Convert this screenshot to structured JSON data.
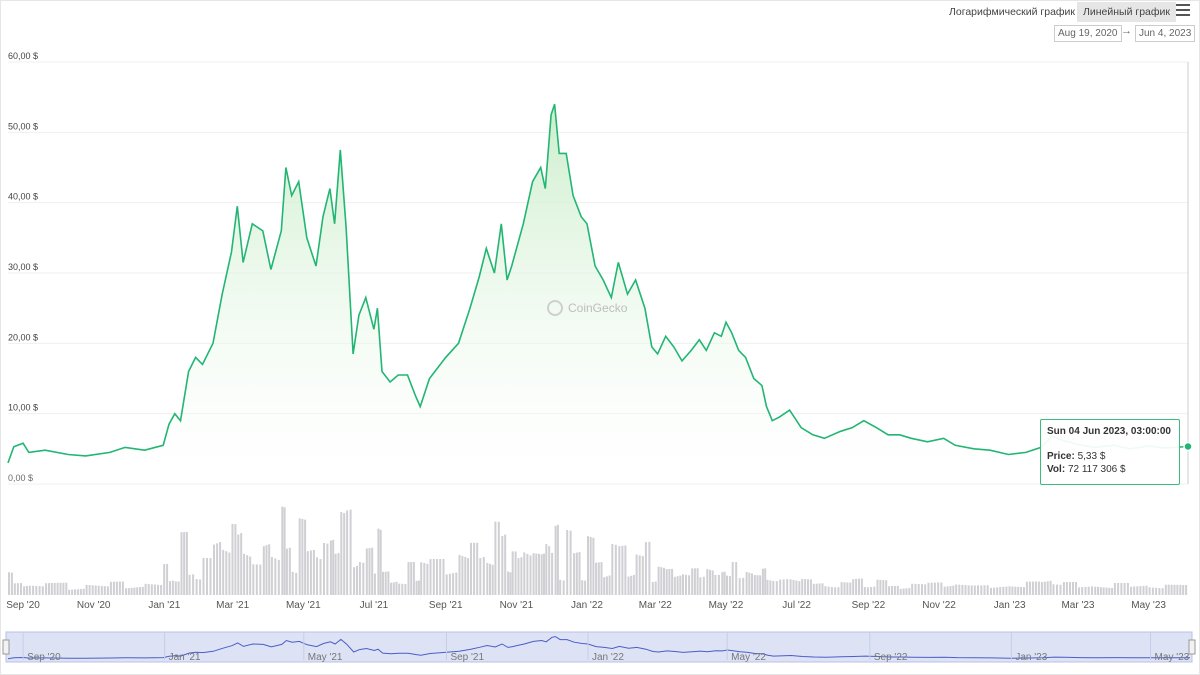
{
  "toolbar": {
    "log_label": "Логарифмический график",
    "linear_label": "Линейный график",
    "date_from": "Aug 19, 2020",
    "date_arrow": "→",
    "date_to": "Jun 4, 2023"
  },
  "tooltip": {
    "date": "Sun 04 Jun 2023, 03:00:00",
    "price_label": "Price:",
    "price_value": "5,33 $",
    "vol_label": "Vol:",
    "vol_value": "72 117 306 $"
  },
  "chart_data": {
    "type": "area",
    "watermark": "CoinGecko",
    "line_color": "#22b573",
    "fill_color": "#d9f2d9",
    "volume_color": "#cfcfd4",
    "navigator_line_color": "#4a5dc8",
    "navigator_fill_color": "#dde3f4",
    "grid": true,
    "y_ticks": [
      "0,00 $",
      "10,00 $",
      "20,00 $",
      "30,00 $",
      "40,00 $",
      "50,00 $",
      "60,00 $"
    ],
    "y_tick_values": [
      0,
      10,
      20,
      30,
      40,
      50,
      60
    ],
    "ylim": [
      0,
      60
    ],
    "x_ticks": [
      "Sep '20",
      "Nov '20",
      "Jan '21",
      "Mar '21",
      "May '21",
      "Jul '21",
      "Sep '21",
      "Nov '21",
      "Jan '22",
      "Mar '22",
      "May '22",
      "Jul '22",
      "Sep '22",
      "Nov '22",
      "Jan '23",
      "Mar '23",
      "May '23"
    ],
    "x_tick_dates": [
      "2020-09-01",
      "2020-11-01",
      "2021-01-01",
      "2021-03-01",
      "2021-05-01",
      "2021-07-01",
      "2021-09-01",
      "2021-11-01",
      "2022-01-01",
      "2022-03-01",
      "2022-05-01",
      "2022-07-01",
      "2022-09-01",
      "2022-11-01",
      "2023-01-01",
      "2023-03-01",
      "2023-05-01"
    ],
    "navigator_ticks": [
      "Sep '20",
      "Jan '21",
      "May '21",
      "Sep '21",
      "Jan '22",
      "May '22",
      "Sep '22",
      "Jan '23",
      "May '23"
    ],
    "navigator_tick_dates": [
      "2020-09-01",
      "2021-01-01",
      "2021-05-01",
      "2021-09-01",
      "2022-01-01",
      "2022-05-01",
      "2022-09-01",
      "2023-01-01",
      "2023-05-01"
    ],
    "x_range": [
      "2020-08-19",
      "2023-06-04"
    ],
    "series": [
      {
        "values": [
          [
            "2020-08-19",
            3.0
          ],
          [
            "2020-08-24",
            5.3
          ],
          [
            "2020-09-01",
            5.8
          ],
          [
            "2020-09-06",
            4.5
          ],
          [
            "2020-09-20",
            4.8
          ],
          [
            "2020-10-10",
            4.2
          ],
          [
            "2020-10-25",
            4.0
          ],
          [
            "2020-11-15",
            4.5
          ],
          [
            "2020-11-28",
            5.2
          ],
          [
            "2020-12-15",
            4.8
          ],
          [
            "2020-12-31",
            5.5
          ],
          [
            "2021-01-05",
            8.5
          ],
          [
            "2021-01-10",
            10.0
          ],
          [
            "2021-01-15",
            9.0
          ],
          [
            "2021-01-22",
            16.0
          ],
          [
            "2021-01-28",
            18.0
          ],
          [
            "2021-02-03",
            17.0
          ],
          [
            "2021-02-12",
            20.0
          ],
          [
            "2021-02-20",
            27.0
          ],
          [
            "2021-02-28",
            33.0
          ],
          [
            "2021-03-05",
            39.5
          ],
          [
            "2021-03-10",
            31.5
          ],
          [
            "2021-03-18",
            37.0
          ],
          [
            "2021-03-27",
            36.0
          ],
          [
            "2021-04-03",
            30.5
          ],
          [
            "2021-04-12",
            36.0
          ],
          [
            "2021-04-16",
            45.0
          ],
          [
            "2021-04-21",
            41.0
          ],
          [
            "2021-04-27",
            43.0
          ],
          [
            "2021-05-04",
            35.0
          ],
          [
            "2021-05-12",
            31.0
          ],
          [
            "2021-05-18",
            38.0
          ],
          [
            "2021-05-24",
            42.0
          ],
          [
            "2021-05-28",
            37.0
          ],
          [
            "2021-06-02",
            47.5
          ],
          [
            "2021-06-07",
            36.5
          ],
          [
            "2021-06-13",
            18.5
          ],
          [
            "2021-06-18",
            24.0
          ],
          [
            "2021-06-24",
            26.5
          ],
          [
            "2021-07-01",
            22.0
          ],
          [
            "2021-07-04",
            25.0
          ],
          [
            "2021-07-08",
            16.0
          ],
          [
            "2021-07-15",
            14.5
          ],
          [
            "2021-07-22",
            15.5
          ],
          [
            "2021-07-30",
            15.5
          ],
          [
            "2021-08-06",
            12.5
          ],
          [
            "2021-08-10",
            11.0
          ],
          [
            "2021-08-18",
            15.0
          ],
          [
            "2021-09-01",
            18.0
          ],
          [
            "2021-09-12",
            20.0
          ],
          [
            "2021-09-22",
            25.0
          ],
          [
            "2021-09-30",
            29.5
          ],
          [
            "2021-10-06",
            33.5
          ],
          [
            "2021-10-13",
            30.0
          ],
          [
            "2021-10-19",
            37.0
          ],
          [
            "2021-10-24",
            29.0
          ],
          [
            "2021-10-28",
            31.0
          ],
          [
            "2021-11-02",
            34.0
          ],
          [
            "2021-11-07",
            37.0
          ],
          [
            "2021-11-15",
            43.0
          ],
          [
            "2021-11-22",
            45.0
          ],
          [
            "2021-11-26",
            42.0
          ],
          [
            "2021-12-01",
            52.5
          ],
          [
            "2021-12-04",
            54.0
          ],
          [
            "2021-12-08",
            47.0
          ],
          [
            "2021-12-14",
            47.0
          ],
          [
            "2021-12-20",
            41.0
          ],
          [
            "2021-12-27",
            38.0
          ],
          [
            "2022-01-01",
            37.0
          ],
          [
            "2022-01-08",
            31.0
          ],
          [
            "2022-01-15",
            29.0
          ],
          [
            "2022-01-22",
            26.5
          ],
          [
            "2022-01-28",
            31.5
          ],
          [
            "2022-02-05",
            27.0
          ],
          [
            "2022-02-12",
            29.0
          ],
          [
            "2022-02-20",
            25.0
          ],
          [
            "2022-02-26",
            19.5
          ],
          [
            "2022-03-03",
            18.5
          ],
          [
            "2022-03-10",
            21.0
          ],
          [
            "2022-03-17",
            19.5
          ],
          [
            "2022-03-24",
            17.5
          ],
          [
            "2022-04-01",
            19.0
          ],
          [
            "2022-04-08",
            20.5
          ],
          [
            "2022-04-14",
            19.0
          ],
          [
            "2022-04-21",
            21.5
          ],
          [
            "2022-04-27",
            21.0
          ],
          [
            "2022-05-01",
            23.0
          ],
          [
            "2022-05-06",
            21.5
          ],
          [
            "2022-05-12",
            19.0
          ],
          [
            "2022-05-18",
            18.0
          ],
          [
            "2022-05-25",
            15.0
          ],
          [
            "2022-06-01",
            14.0
          ],
          [
            "2022-06-05",
            11.0
          ],
          [
            "2022-06-10",
            9.0
          ],
          [
            "2022-06-16",
            9.5
          ],
          [
            "2022-06-25",
            10.5
          ],
          [
            "2022-07-05",
            8.0
          ],
          [
            "2022-07-15",
            7.0
          ],
          [
            "2022-07-25",
            6.5
          ],
          [
            "2022-08-08",
            7.5
          ],
          [
            "2022-08-18",
            8.0
          ],
          [
            "2022-08-28",
            9.0
          ],
          [
            "2022-09-08",
            8.0
          ],
          [
            "2022-09-18",
            7.0
          ],
          [
            "2022-09-28",
            7.0
          ],
          [
            "2022-10-08",
            6.5
          ],
          [
            "2022-10-22",
            6.0
          ],
          [
            "2022-11-05",
            6.5
          ],
          [
            "2022-11-15",
            5.5
          ],
          [
            "2022-12-01",
            5.0
          ],
          [
            "2022-12-15",
            4.8
          ],
          [
            "2022-12-31",
            4.2
          ],
          [
            "2023-01-15",
            4.5
          ],
          [
            "2023-01-28",
            5.2
          ],
          [
            "2023-02-07",
            6.8
          ],
          [
            "2023-02-16",
            6.2
          ],
          [
            "2023-03-01",
            5.6
          ],
          [
            "2023-03-15",
            5.2
          ],
          [
            "2023-04-01",
            5.5
          ],
          [
            "2023-04-15",
            5.0
          ],
          [
            "2023-05-01",
            5.4
          ],
          [
            "2023-05-15",
            5.1
          ],
          [
            "2023-06-04",
            5.33
          ]
        ]
      }
    ]
  }
}
